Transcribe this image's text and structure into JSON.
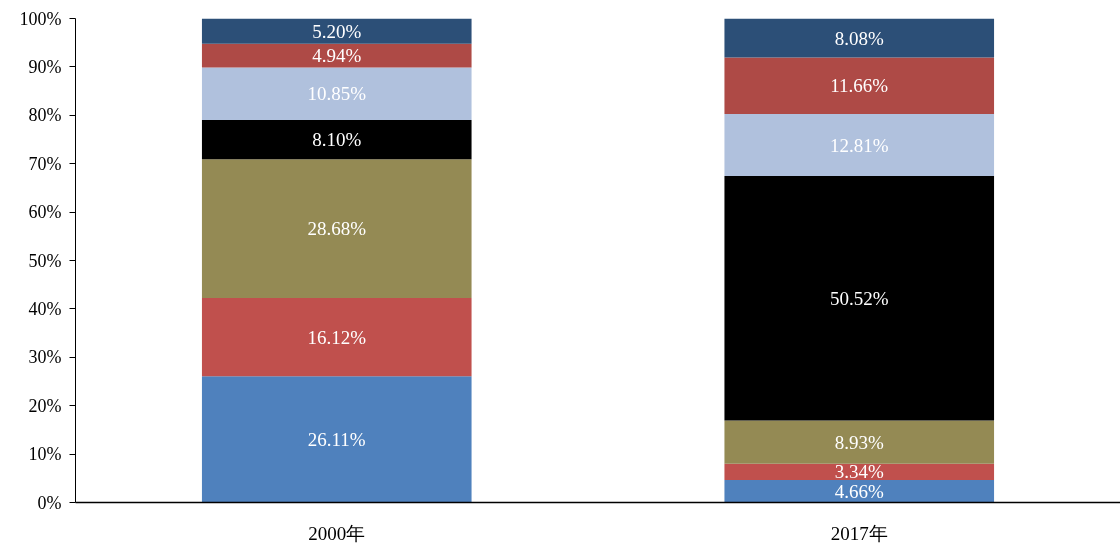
{
  "chart_data": {
    "type": "bar",
    "stacked": true,
    "categories": [
      "2000年",
      "2017年"
    ],
    "ylim": [
      0,
      100
    ],
    "yticks": [
      {
        "value": 0,
        "label": "0%"
      },
      {
        "value": 10,
        "label": "10%"
      },
      {
        "value": 20,
        "label": "20%"
      },
      {
        "value": 30,
        "label": "30%"
      },
      {
        "value": 40,
        "label": "40%"
      },
      {
        "value": 50,
        "label": "50%"
      },
      {
        "value": 60,
        "label": "60%"
      },
      {
        "value": 70,
        "label": "70%"
      },
      {
        "value": 80,
        "label": "80%"
      },
      {
        "value": 90,
        "label": "90%"
      },
      {
        "value": 100,
        "label": "100%"
      }
    ],
    "series": [
      {
        "color": "#4f81bd",
        "values": [
          26.11,
          4.66
        ],
        "value_labels": [
          "26.11%",
          "4.66%"
        ]
      },
      {
        "color": "#c0504d",
        "values": [
          16.12,
          3.34
        ],
        "value_labels": [
          "16.12%",
          "3.34%"
        ]
      },
      {
        "color": "#948a54",
        "values": [
          28.68,
          8.93
        ],
        "value_labels": [
          "28.68%",
          "8.93%"
        ]
      },
      {
        "color": "#000000",
        "values": [
          8.1,
          50.52
        ],
        "value_labels": [
          "8.10%",
          "50.52%"
        ]
      },
      {
        "color": "#b0c1dd",
        "values": [
          10.85,
          12.81
        ],
        "value_labels": [
          "10.85%",
          "12.81%"
        ]
      },
      {
        "color": "#ae4a46",
        "values": [
          4.94,
          11.66
        ],
        "value_labels": [
          "4.94%",
          "11.66%"
        ]
      },
      {
        "color": "#2c4f77",
        "values": [
          5.2,
          8.08
        ],
        "value_labels": [
          "5.20%",
          "8.08%"
        ]
      }
    ]
  }
}
